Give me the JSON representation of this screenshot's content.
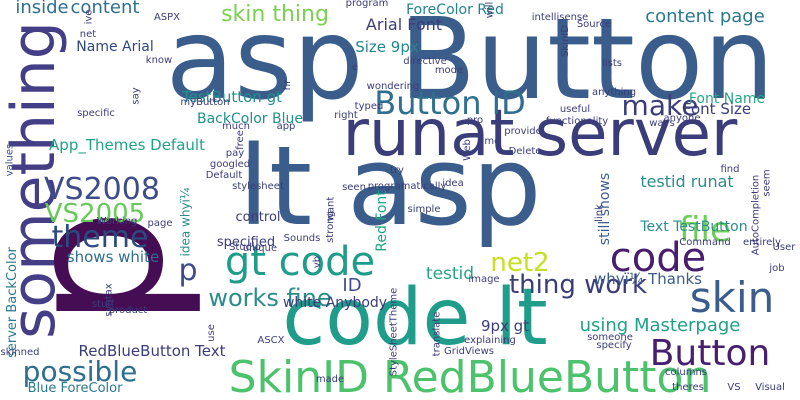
{
  "wordcloud": {
    "words": [
      {
        "text": "asp Button",
        "color": "#3a5d8c"
      },
      {
        "text": "lt asp",
        "color": "#3a5d8c"
      },
      {
        "text": "runat server",
        "color": "#3b3d7a"
      },
      {
        "text": "code lt",
        "color": "#1f9c8a"
      },
      {
        "text": "SkinID RedBlueButton",
        "color": "#4cc26c"
      },
      {
        "text": "p",
        "color": "#440d54"
      },
      {
        "text": "something",
        "color": "#433e85"
      },
      {
        "text": "Button ID",
        "color": "#2e6e8e"
      },
      {
        "text": "make",
        "color": "#3b3d7a"
      },
      {
        "text": "gt code",
        "color": "#1f9c8a"
      },
      {
        "text": "code",
        "color": "#481f6f"
      },
      {
        "text": "skin",
        "color": "#3a5d8c"
      },
      {
        "text": "theme",
        "color": "#2c4a7d"
      },
      {
        "text": "VS2008",
        "color": "#3e4c8a"
      },
      {
        "text": "VS2005",
        "color": "#66c95a"
      },
      {
        "text": "file",
        "color": "#6cce59"
      },
      {
        "text": "Button",
        "color": "#481f6f"
      },
      {
        "text": "possible",
        "color": "#2e6e8e"
      },
      {
        "text": "p",
        "color": "#3e4c8a"
      },
      {
        "text": "net2",
        "color": "#c6e020"
      },
      {
        "text": "thing work",
        "color": "#3b3d7a"
      },
      {
        "text": "works fine",
        "color": "#2c8c8b"
      },
      {
        "text": "skin thing",
        "color": "#7ad151"
      },
      {
        "text": "content page",
        "color": "#2a788e"
      },
      {
        "text": "ForeColor Red",
        "color": "#25838e"
      },
      {
        "text": "Arial Font",
        "color": "#3b3d7a"
      },
      {
        "text": "Size 9px",
        "color": "#24868e"
      },
      {
        "text": "Name Arial",
        "color": "#2c4a7d"
      },
      {
        "text": "inside",
        "color": "#2e6e8e"
      },
      {
        "text": "content",
        "color": "#2e6e8e"
      },
      {
        "text": "TestButton gt",
        "color": "#21918c"
      },
      {
        "text": "BackColor Blue",
        "color": "#21918c"
      },
      {
        "text": "App_Themes Default",
        "color": "#20a386"
      },
      {
        "text": "Font Name",
        "color": "#2aa384"
      },
      {
        "text": "Font Size",
        "color": "#3b3d7a"
      },
      {
        "text": "testid runat",
        "color": "#2c8c8b"
      },
      {
        "text": "Text TestButton",
        "color": "#2c8c8b"
      },
      {
        "text": "still shows",
        "color": "#3a5d8c"
      },
      {
        "text": "shows white",
        "color": "#2e6e8e"
      },
      {
        "text": "using Masterpage",
        "color": "#1fa187"
      },
      {
        "text": "RedBlueButton Text",
        "color": "#3b3d7a"
      },
      {
        "text": "white Anybody",
        "color": "#3b3d7a"
      },
      {
        "text": "whyï¼ Thanks",
        "color": "#3a5d8c"
      },
      {
        "text": "9px gt",
        "color": "#3b3d7a"
      },
      {
        "text": "testid",
        "color": "#2aa384"
      },
      {
        "text": "ID",
        "color": "#3e4c8a"
      },
      {
        "text": "Blue ForeColor",
        "color": "#2a788e"
      },
      {
        "text": "server BackColor",
        "color": "#2a788e"
      },
      {
        "text": "Red Font",
        "color": "#20a386"
      },
      {
        "text": "control",
        "color": "#3b3d7a"
      },
      {
        "text": "specified",
        "color": "#3b3d7a"
      },
      {
        "text": "idea whyï¼",
        "color": "#2c8c8b"
      },
      {
        "text": "Working",
        "color": "#3b3d7a"
      },
      {
        "text": "values",
        "color": "#3e4c8a"
      },
      {
        "text": "Studio",
        "color": "#3b3d7a"
      },
      {
        "text": "Sounds",
        "color": "#3b3d7a"
      },
      {
        "text": "strong",
        "color": "#3b3d7a"
      },
      {
        "text": "vb",
        "color": "#3b3d7a"
      },
      {
        "text": "seen",
        "color": "#3b3d7a"
      },
      {
        "text": "googled",
        "color": "#3b3d7a"
      },
      {
        "text": "Default",
        "color": "#3b3d7a"
      },
      {
        "text": "stylesheet",
        "color": "#3b3d7a"
      },
      {
        "text": "programatically",
        "color": "#3b3d7a"
      },
      {
        "text": "app",
        "color": "#3b3d7a"
      },
      {
        "text": "myButton",
        "color": "#3b3d7a"
      },
      {
        "text": "right",
        "color": "#3b3d7a"
      },
      {
        "text": "provide",
        "color": "#3b3d7a"
      },
      {
        "text": "useful",
        "color": "#3b3d7a"
      },
      {
        "text": "functionality",
        "color": "#3b3d7a"
      },
      {
        "text": "anyone",
        "color": "#3b3d7a"
      },
      {
        "text": "anything",
        "color": "#3b3d7a"
      },
      {
        "text": "ways",
        "color": "#3b3d7a"
      },
      {
        "text": "time",
        "color": "#3b3d7a"
      },
      {
        "text": "Delete",
        "color": "#3b3d7a"
      },
      {
        "text": "idea",
        "color": "#3b3d7a"
      },
      {
        "text": "simple",
        "color": "#3b3d7a"
      },
      {
        "text": "find",
        "color": "#3b3d7a"
      },
      {
        "text": "seem",
        "color": "#3b3d7a"
      },
      {
        "text": "entirely",
        "color": "#3b3d7a"
      },
      {
        "text": "User",
        "color": "#3b3d7a"
      },
      {
        "text": "Command",
        "color": "#3b3d7a"
      },
      {
        "text": "AutoCompletion",
        "color": "#3b3d7a"
      },
      {
        "text": "job",
        "color": "#3b3d7a"
      },
      {
        "text": "theres",
        "color": "#3b3d7a"
      },
      {
        "text": "columns",
        "color": "#3b3d7a"
      },
      {
        "text": "VS",
        "color": "#3b3d7a"
      },
      {
        "text": "Visual",
        "color": "#3b3d7a"
      },
      {
        "text": "made",
        "color": "#3b3d7a"
      },
      {
        "text": "GridViews",
        "color": "#3b3d7a"
      },
      {
        "text": "explaining",
        "color": "#3b3d7a"
      },
      {
        "text": "someone",
        "color": "#3b3d7a"
      },
      {
        "text": "specify",
        "color": "#3b3d7a"
      },
      {
        "text": "ASCX",
        "color": "#3b3d7a"
      },
      {
        "text": "product",
        "color": "#3b3d7a"
      },
      {
        "text": "stuff",
        "color": "#3b3d7a"
      },
      {
        "text": "unique",
        "color": "#3b3d7a"
      },
      {
        "text": "translate",
        "color": "#3b3d7a"
      },
      {
        "text": "image",
        "color": "#3b3d7a"
      },
      {
        "text": "StyleSheetTheme",
        "color": "#3b3d7a"
      },
      {
        "text": "use",
        "color": "#3b3d7a"
      },
      {
        "text": "skinned",
        "color": "#3b3d7a"
      },
      {
        "text": "syntax",
        "color": "#3b3d7a"
      },
      {
        "text": "specific",
        "color": "#3b3d7a"
      },
      {
        "text": "net",
        "color": "#3b3d7a"
      },
      {
        "text": "know",
        "color": "#3b3d7a"
      },
      {
        "text": "ASPX",
        "color": "#3b3d7a"
      },
      {
        "text": "directive",
        "color": "#3b3d7a"
      },
      {
        "text": "wondering",
        "color": "#3b3d7a"
      },
      {
        "text": "typed",
        "color": "#3b3d7a"
      },
      {
        "text": "mode",
        "color": "#3b3d7a"
      },
      {
        "text": "lists",
        "color": "#3b3d7a"
      },
      {
        "text": "intellisense",
        "color": "#3b3d7a"
      },
      {
        "text": "Source",
        "color": "#3b3d7a"
      },
      {
        "text": "will",
        "color": "#3b3d7a"
      },
      {
        "text": "ive",
        "color": "#3b3d7a"
      },
      {
        "text": "hr",
        "color": "#3b3d7a"
      },
      {
        "text": "want",
        "color": "#3b3d7a"
      },
      {
        "text": "program",
        "color": "#3b3d7a"
      },
      {
        "text": "pay",
        "color": "#3b3d7a"
      },
      {
        "text": "free",
        "color": "#3b3d7a"
      },
      {
        "text": "much",
        "color": "#3b3d7a"
      },
      {
        "text": "say",
        "color": "#3b3d7a"
      },
      {
        "text": "try",
        "color": "#3b3d7a"
      },
      {
        "text": "Web",
        "color": "#3b3d7a"
      },
      {
        "text": "link",
        "color": "#3b3d7a"
      },
      {
        "text": "SkinID",
        "color": "#3b3d7a"
      },
      {
        "text": "pro",
        "color": "#3b3d7a"
      },
      {
        "text": "e",
        "color": "#3b3d7a"
      },
      {
        "text": "page",
        "color": "#3b3d7a"
      }
    ]
  }
}
